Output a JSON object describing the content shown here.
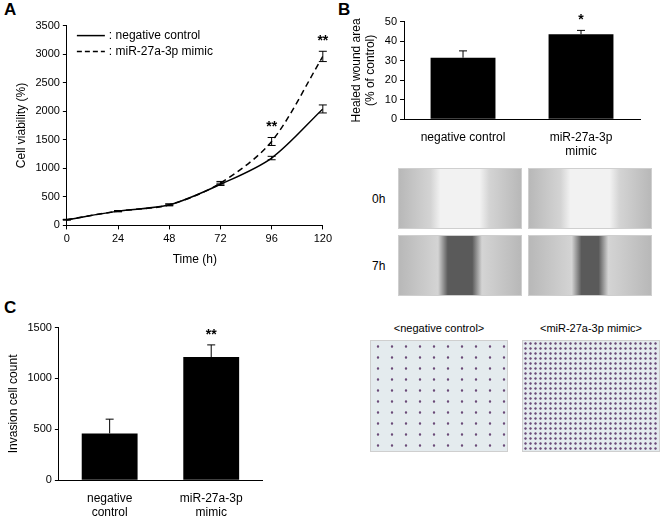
{
  "chart_data": [
    {
      "type": "line",
      "title": "A",
      "x": [
        0,
        24,
        48,
        72,
        96,
        120
      ],
      "xlim": [
        0,
        120
      ],
      "xticks": [
        0,
        24,
        48,
        72,
        96,
        120
      ],
      "ylim": [
        0,
        3500
      ],
      "yticks": [
        0,
        500,
        1000,
        1500,
        2000,
        2500,
        3000,
        3500
      ],
      "x_label": "Time (h)",
      "y_label": "Cell viability (%)",
      "grid": false,
      "legend": "upper left",
      "series": [
        {
          "name": ": negative control",
          "color": "#000000",
          "line_style": "solid",
          "values": [
            100,
            250,
            360,
            720,
            1180,
            2040
          ],
          "errors": [
            5,
            10,
            15,
            20,
            30,
            70
          ]
        },
        {
          "name": ": miR-27a-3p mimic",
          "color": "#000000",
          "line_style": "dashed",
          "values": [
            100,
            250,
            360,
            740,
            1470,
            2960
          ],
          "errors": [
            5,
            10,
            15,
            30,
            70,
            90
          ]
        }
      ],
      "annotations": [
        {
          "x": 96,
          "text": "**"
        },
        {
          "x": 120,
          "text": "**"
        }
      ]
    },
    {
      "type": "bar",
      "title": "B",
      "categories": [
        "negative control",
        [
          "miR-27a-3p",
          "mimic"
        ]
      ],
      "values": [
        31.5,
        43.5
      ],
      "errors": [
        3.5,
        2
      ],
      "color": "#000000",
      "ylim": [
        0,
        50
      ],
      "yticks": [
        0,
        10,
        20,
        30,
        40,
        50
      ],
      "y_label": [
        "Healed wound area",
        "(% of control)"
      ],
      "grid": false,
      "annotations": [
        {
          "category": [
            "miR-27a-3p",
            "mimic"
          ],
          "text": "*"
        }
      ],
      "image_rows": [
        "0h",
        "7h"
      ]
    },
    {
      "type": "bar",
      "title": "C",
      "categories": [
        [
          "negative",
          "control"
        ],
        [
          "miR-27a-3p",
          "mimic"
        ]
      ],
      "values": [
        460,
        1210
      ],
      "errors": [
        140,
        120
      ],
      "color": "#000000",
      "ylim": [
        0,
        1500
      ],
      "yticks": [
        0,
        500,
        1000,
        1500
      ],
      "y_label": "Invasion cell count",
      "grid": false,
      "annotations": [
        {
          "category": [
            "miR-27a-3p",
            "mimic"
          ],
          "text": "**"
        }
      ],
      "image_labels": [
        "<negative control>",
        "<miR-27a-3p mimic>"
      ]
    }
  ]
}
